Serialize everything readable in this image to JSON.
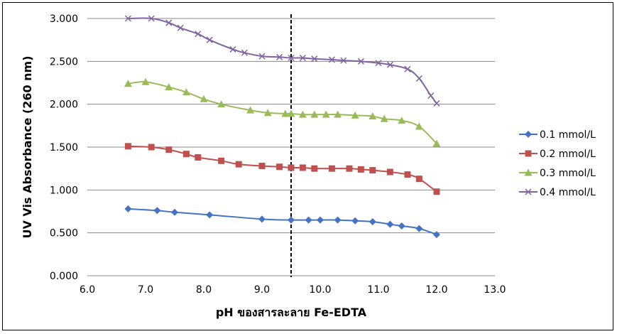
{
  "chart_data": {
    "type": "line",
    "title": "",
    "xlabel": "pH ของสารละลาย  Fe-EDTA",
    "ylabel": "UV Vis Absorbance (260 nm)",
    "xlim": [
      6.0,
      13.0
    ],
    "ylim": [
      0.0,
      3.0
    ],
    "x_ticks": [
      "6.0",
      "7.0",
      "8.0",
      "9.0",
      "10.0",
      "11.0",
      "12.0",
      "13.0"
    ],
    "y_ticks": [
      "0.000",
      "0.500",
      "1.000",
      "1.500",
      "2.000",
      "2.500",
      "3.000"
    ],
    "grid": "horizontal",
    "legend_position": "right",
    "reference_line": {
      "x": 9.5,
      "style": "dashed",
      "color": "#000000"
    },
    "series": [
      {
        "name": "0.1 mmol/L",
        "color": "#4472C4",
        "marker": "diamond",
        "x": [
          6.7,
          7.2,
          7.5,
          8.1,
          9.0,
          9.5,
          9.8,
          10.0,
          10.3,
          10.6,
          10.9,
          11.2,
          11.4,
          11.7,
          12.0
        ],
        "y": [
          0.78,
          0.76,
          0.74,
          0.71,
          0.66,
          0.65,
          0.65,
          0.65,
          0.65,
          0.64,
          0.63,
          0.6,
          0.58,
          0.55,
          0.48
        ]
      },
      {
        "name": "0.2 mmol/L",
        "color": "#C0504D",
        "marker": "square",
        "x": [
          6.7,
          7.1,
          7.4,
          7.7,
          7.9,
          8.3,
          8.6,
          9.0,
          9.3,
          9.5,
          9.7,
          9.9,
          10.2,
          10.5,
          10.7,
          10.9,
          11.2,
          11.5,
          11.7,
          12.0
        ],
        "y": [
          1.51,
          1.5,
          1.47,
          1.42,
          1.38,
          1.34,
          1.3,
          1.28,
          1.27,
          1.26,
          1.26,
          1.25,
          1.25,
          1.25,
          1.24,
          1.23,
          1.21,
          1.18,
          1.13,
          0.98
        ]
      },
      {
        "name": "0.3 mmol/L",
        "color": "#9BBB59",
        "marker": "triangle",
        "x": [
          6.7,
          7.0,
          7.4,
          7.7,
          8.0,
          8.3,
          8.8,
          9.1,
          9.4,
          9.5,
          9.7,
          9.9,
          10.1,
          10.3,
          10.6,
          10.9,
          11.1,
          11.4,
          11.7,
          12.0
        ],
        "y": [
          2.24,
          2.26,
          2.2,
          2.14,
          2.06,
          2.0,
          1.93,
          1.9,
          1.89,
          1.89,
          1.88,
          1.88,
          1.88,
          1.88,
          1.87,
          1.86,
          1.83,
          1.81,
          1.74,
          1.54
        ]
      },
      {
        "name": "0.4 mmol/L",
        "color": "#8064A2",
        "marker": "x",
        "x": [
          6.7,
          7.1,
          7.4,
          7.6,
          7.9,
          8.1,
          8.5,
          8.7,
          9.0,
          9.3,
          9.5,
          9.7,
          9.9,
          10.2,
          10.4,
          10.7,
          11.0,
          11.2,
          11.5,
          11.7,
          11.9,
          12.0
        ],
        "y": [
          3.0,
          3.0,
          2.95,
          2.89,
          2.82,
          2.75,
          2.64,
          2.6,
          2.56,
          2.55,
          2.54,
          2.54,
          2.53,
          2.52,
          2.51,
          2.5,
          2.48,
          2.46,
          2.41,
          2.3,
          2.1,
          2.01
        ]
      }
    ]
  }
}
